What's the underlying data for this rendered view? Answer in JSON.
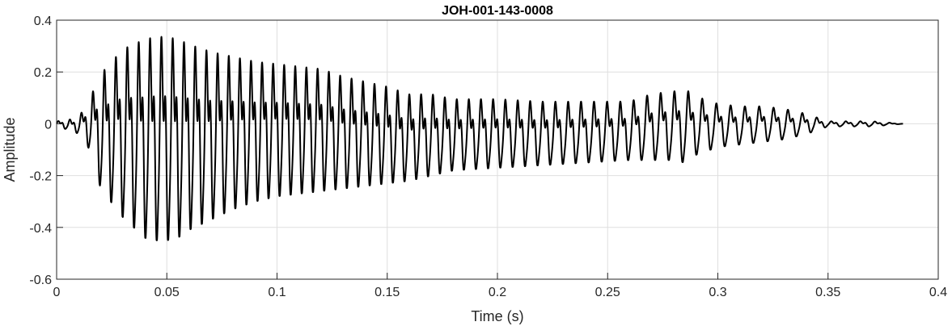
{
  "chart_data": {
    "type": "line",
    "title": "JOH-001-143-0008",
    "xlabel": "Time (s)",
    "ylabel": "Amplitude",
    "xlim": [
      0,
      0.4
    ],
    "ylim": [
      -0.6,
      0.4
    ],
    "xticks": [
      0,
      0.05,
      0.1,
      0.15,
      0.2,
      0.25,
      0.3,
      0.35,
      0.4
    ],
    "xtick_labels": [
      "0",
      "0.05",
      "0.1",
      "0.15",
      "0.2",
      "0.25",
      "0.3",
      "0.35",
      "0.4"
    ],
    "yticks": [
      -0.6,
      -0.4,
      -0.2,
      0,
      0.2,
      0.4
    ],
    "ytick_labels": [
      "-0.6",
      "-0.4",
      "-0.2",
      "0",
      "0.2",
      "0.4"
    ],
    "grid": true,
    "series": [
      {
        "color": "#000000",
        "duration": 0.384,
        "envelope_time": [
          0,
          0.008,
          0.012,
          0.016,
          0.02,
          0.03,
          0.04,
          0.045,
          0.05,
          0.055,
          0.06,
          0.07,
          0.08,
          0.09,
          0.1,
          0.11,
          0.12,
          0.13,
          0.14,
          0.15,
          0.16,
          0.17,
          0.18,
          0.2,
          0.22,
          0.24,
          0.26,
          0.27,
          0.28,
          0.285,
          0.29,
          0.3,
          0.31,
          0.32,
          0.33,
          0.34,
          0.35,
          0.36,
          0.37,
          0.384
        ],
        "envelope_max": [
          0.01,
          0.02,
          0.05,
          0.12,
          0.2,
          0.3,
          0.34,
          0.35,
          0.35,
          0.34,
          0.32,
          0.29,
          0.27,
          0.25,
          0.24,
          0.23,
          0.22,
          0.19,
          0.17,
          0.15,
          0.12,
          0.12,
          0.1,
          0.1,
          0.09,
          0.09,
          0.09,
          0.12,
          0.13,
          0.14,
          0.11,
          0.08,
          0.07,
          0.07,
          0.06,
          0.04,
          0.01,
          0.01,
          0.01,
          0.0
        ],
        "envelope_min": [
          -0.01,
          -0.03,
          -0.05,
          -0.12,
          -0.25,
          -0.36,
          -0.44,
          -0.45,
          -0.45,
          -0.44,
          -0.41,
          -0.37,
          -0.33,
          -0.3,
          -0.28,
          -0.27,
          -0.26,
          -0.25,
          -0.24,
          -0.23,
          -0.22,
          -0.2,
          -0.18,
          -0.17,
          -0.16,
          -0.15,
          -0.14,
          -0.14,
          -0.14,
          -0.15,
          -0.12,
          -0.09,
          -0.08,
          -0.07,
          -0.06,
          -0.04,
          -0.01,
          -0.01,
          -0.01,
          0.0
        ],
        "f0_time": [
          0,
          0.1,
          0.2,
          0.3,
          0.384
        ],
        "f0_hz": [
          190,
          200,
          180,
          155,
          150
        ]
      }
    ]
  }
}
